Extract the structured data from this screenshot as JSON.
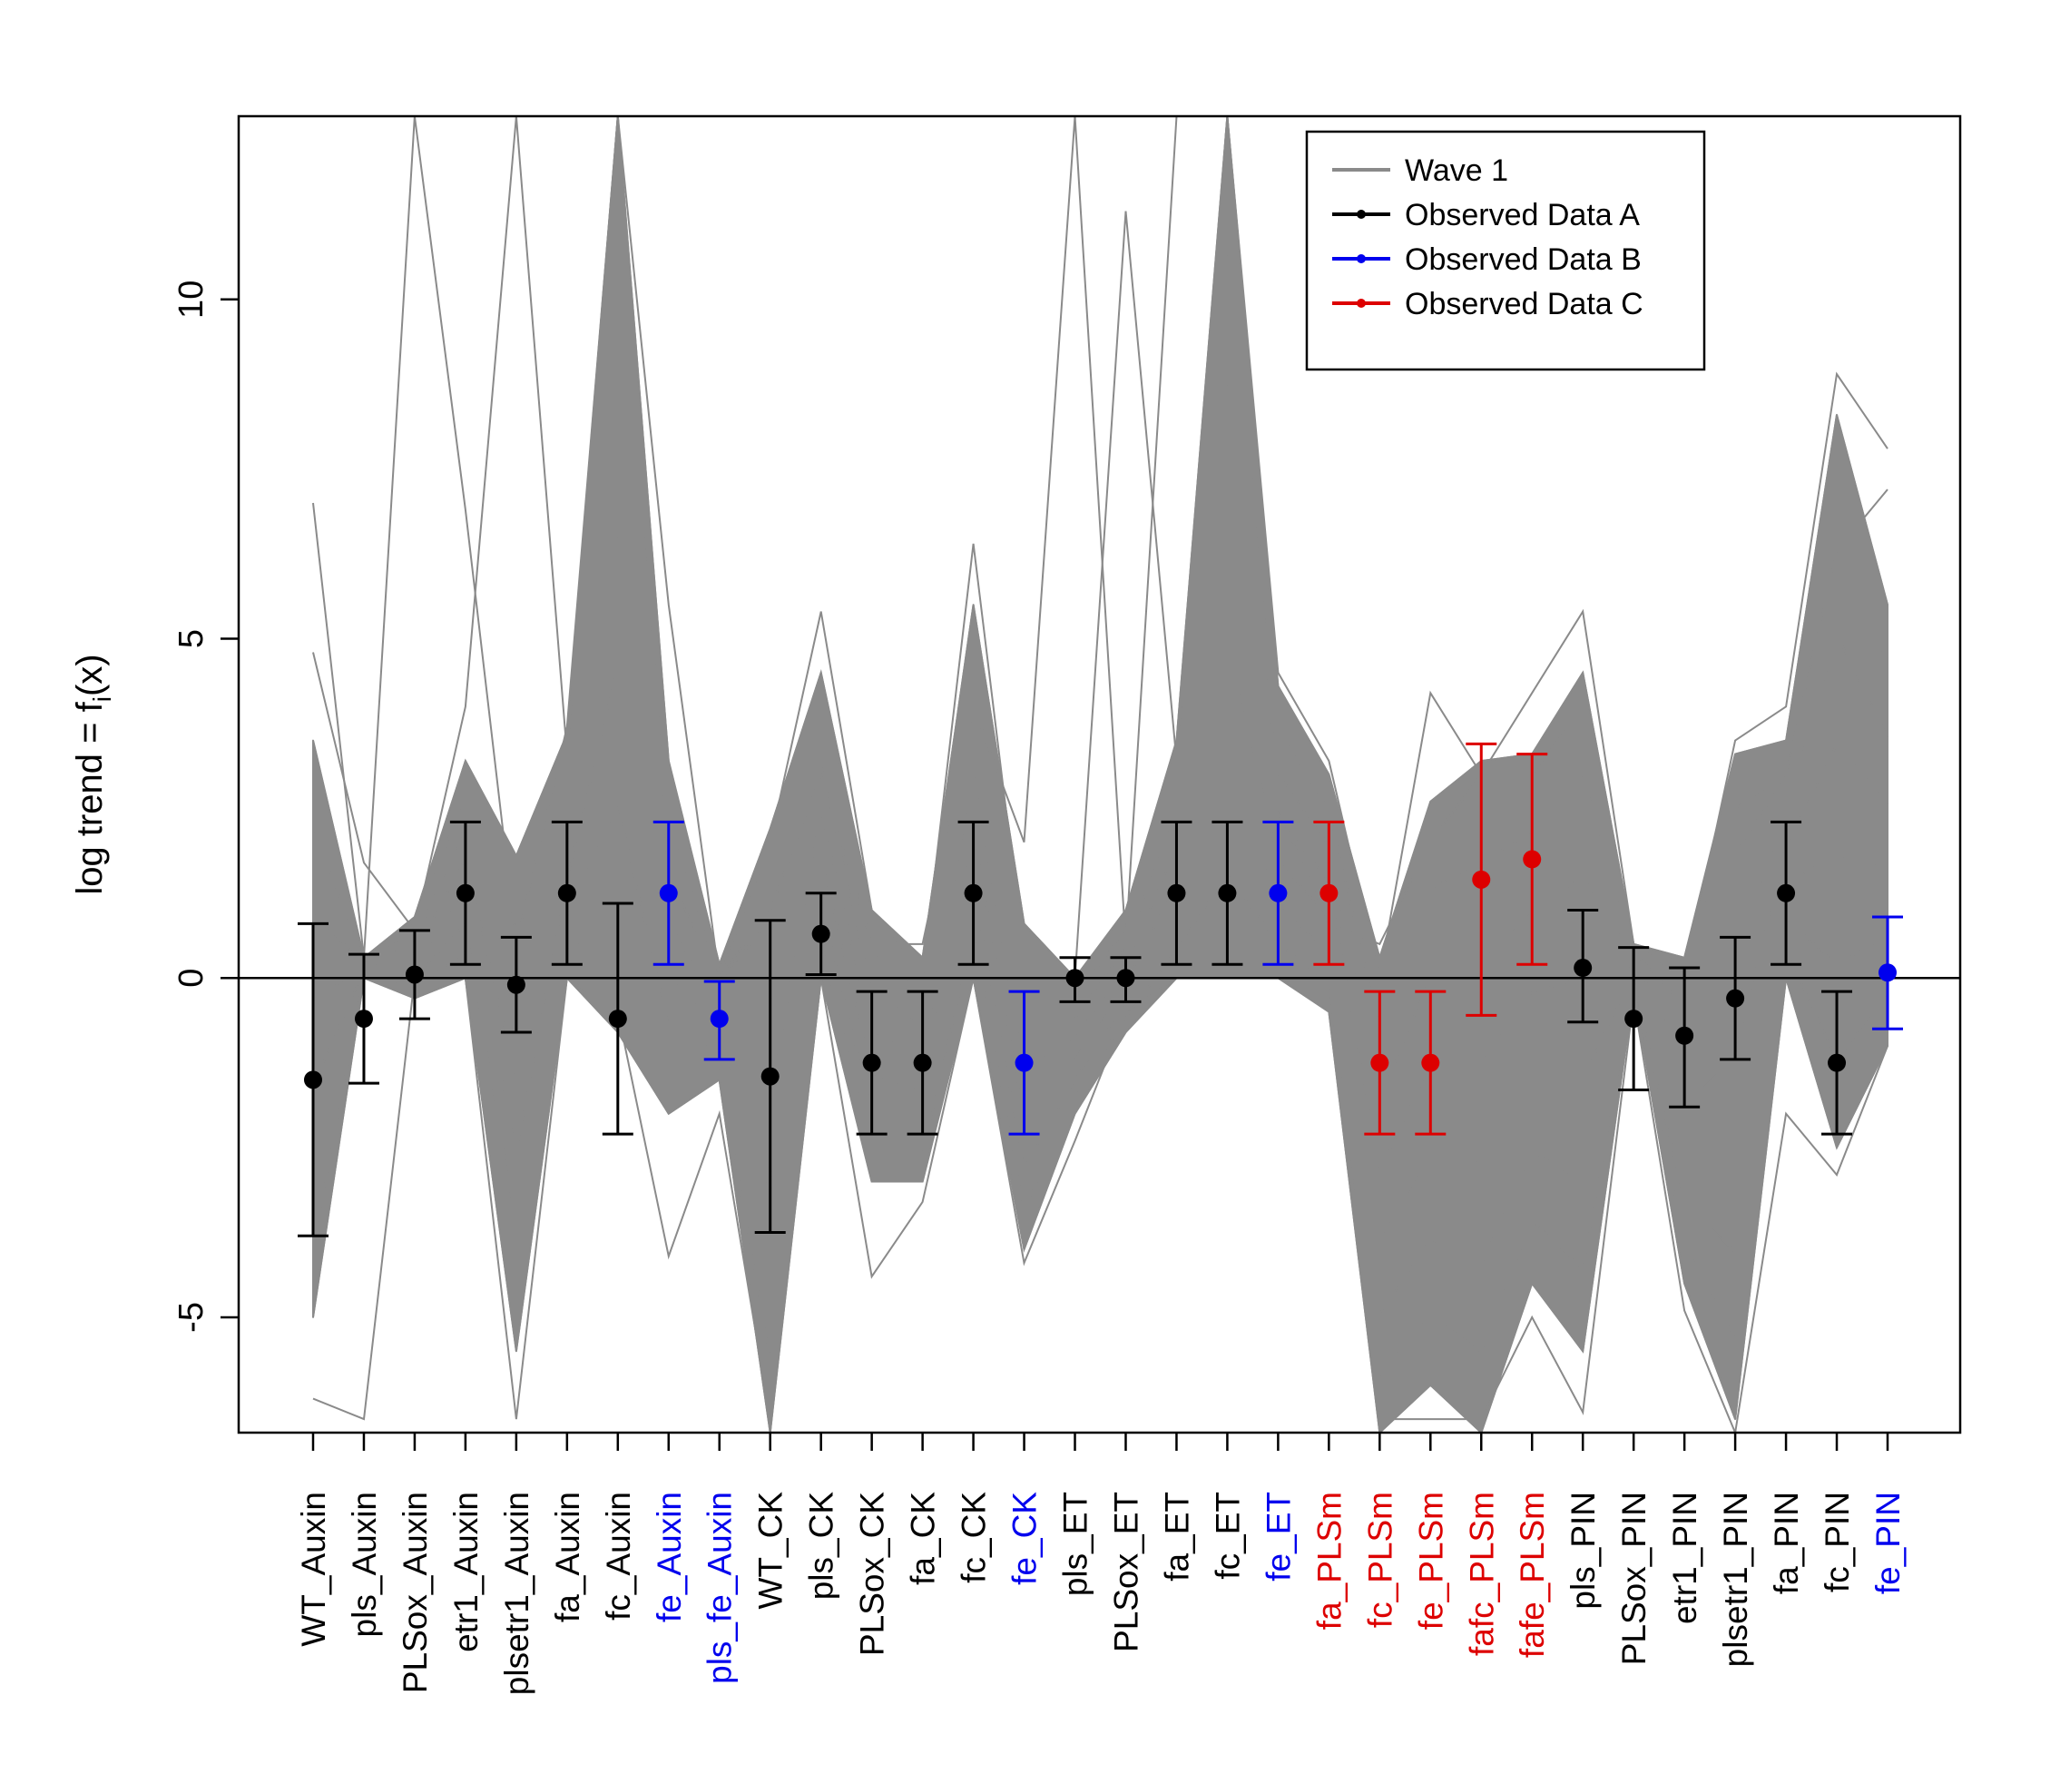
{
  "chart_data": {
    "type": "line",
    "title": "",
    "xlabel": "",
    "ylabel_main": "log trend = f",
    "ylabel_sub": "i",
    "ylabel_tail": "(x)",
    "ylim": [
      -6.7,
      12.7
    ],
    "yticks": [
      -5,
      0,
      5,
      10
    ],
    "ytick_labels": [
      "-5",
      "0",
      "5",
      "10"
    ],
    "zero_line": 0,
    "categories": [
      "WT_Auxin",
      "pls_Auxin",
      "PLSox_Auxin",
      "etr1_Auxin",
      "plsetr1_Auxin",
      "fa_Auxin",
      "fc_Auxin",
      "fe_Auxin",
      "pls_fe_Auxin",
      "WT_CK",
      "pls_CK",
      "PLSox_CK",
      "fa_CK",
      "fc_CK",
      "fe_CK",
      "pls_ET",
      "PLSox_ET",
      "fa_ET",
      "fc_ET",
      "fe_ET",
      "fa_PLSm",
      "fc_PLSm",
      "fe_PLSm",
      "fafc_PLSm",
      "fafe_PLSm",
      "pls_PIN",
      "PLSox_PIN",
      "etr1_PIN",
      "plsetr1_PIN",
      "fa_PIN",
      "fc_PIN",
      "fe_PIN"
    ],
    "category_groups": [
      "A",
      "A",
      "A",
      "A",
      "A",
      "A",
      "A",
      "B",
      "B",
      "A",
      "A",
      "A",
      "A",
      "A",
      "B",
      "A",
      "A",
      "A",
      "A",
      "B",
      "C",
      "C",
      "C",
      "C",
      "C",
      "A",
      "A",
      "A",
      "A",
      "A",
      "A",
      "B"
    ],
    "observed": {
      "mean": [
        -1.5,
        -0.6,
        0.05,
        1.25,
        -0.1,
        1.25,
        -0.6,
        1.25,
        -0.6,
        -1.45,
        0.65,
        -1.25,
        -1.25,
        1.25,
        -1.25,
        0.0,
        0.0,
        1.25,
        1.25,
        1.25,
        1.25,
        -1.25,
        -1.25,
        1.45,
        1.75,
        0.15,
        -0.6,
        -0.85,
        -0.3,
        1.25,
        -1.25,
        0.08
      ],
      "lower": [
        -3.8,
        -1.55,
        -0.6,
        0.2,
        -0.8,
        0.2,
        -2.3,
        0.2,
        -1.2,
        -3.75,
        0.05,
        -2.3,
        -2.3,
        0.2,
        -2.3,
        -0.35,
        -0.35,
        0.2,
        0.2,
        0.2,
        0.2,
        -2.3,
        -2.3,
        -0.55,
        0.2,
        -0.65,
        -1.65,
        -1.9,
        -1.2,
        0.2,
        -2.3,
        -0.75
      ],
      "upper": [
        0.8,
        0.35,
        0.7,
        2.3,
        0.6,
        2.3,
        1.1,
        2.3,
        -0.05,
        0.85,
        1.25,
        -0.2,
        -0.2,
        2.3,
        -0.2,
        0.3,
        0.3,
        2.3,
        2.3,
        2.3,
        2.3,
        -0.2,
        -0.2,
        3.45,
        3.3,
        1.0,
        0.45,
        0.15,
        0.6,
        2.3,
        -0.2,
        0.9
      ]
    },
    "wave1_envelope": {
      "upper": [
        3.5,
        0.3,
        0.9,
        3.2,
        1.8,
        3.6,
        12.7,
        3.2,
        0.2,
        2.2,
        4.5,
        1.0,
        0.3,
        5.5,
        0.8,
        0.0,
        1.0,
        3.5,
        12.7,
        4.3,
        3.0,
        0.3,
        2.6,
        3.2,
        3.3,
        4.5,
        0.5,
        0.3,
        3.3,
        3.5,
        8.3,
        5.5
      ],
      "lower": [
        -5.0,
        0.0,
        -0.3,
        0.0,
        -5.5,
        0.0,
        -0.8,
        -2.0,
        -1.5,
        -6.7,
        0.0,
        -3.0,
        -3.0,
        0.0,
        -4.0,
        -2.0,
        -0.8,
        0.0,
        0.0,
        0.0,
        -0.5,
        -6.7,
        -6.0,
        -6.7,
        -4.5,
        -5.5,
        -0.2,
        -4.5,
        -6.5,
        0.0,
        -2.5,
        -1.0
      ]
    },
    "wave1_spikes": [
      {
        "values": [
          7.0,
          0.3,
          12.7,
          6.9,
          0.5,
          3.7,
          12.7,
          5.5,
          0.0,
          2.0,
          5.4,
          1.0,
          0.0,
          6.4,
          0.3,
          0.0,
          11.3,
          3.2,
          12.7,
          4.5,
          3.2,
          0.0,
          4.2,
          3.0,
          4.2,
          5.4,
          0.5,
          0.0,
          3.5,
          4.0,
          8.9,
          7.8
        ]
      },
      {
        "values": [
          4.8,
          1.7,
          0.7,
          4.0,
          12.7,
          3.3,
          12.7,
          1.5,
          0.0,
          1.0,
          3.0,
          0.5,
          0.5,
          4.0,
          2.0,
          12.7,
          0.5,
          12.7,
          12.7,
          2.5,
          0.8,
          0.5,
          2.0,
          3.0,
          3.0,
          4.0,
          0.5,
          0.2,
          2.5,
          3.0,
          6.3,
          7.2
        ]
      },
      {
        "values": [
          -6.2,
          -6.5,
          0.0,
          0.0,
          -6.5,
          0.0,
          -0.5,
          -4.1,
          -2.0,
          -6.5,
          0.0,
          -4.4,
          -3.3,
          0.0,
          -4.2,
          -2.4,
          -0.5,
          0.0,
          0.0,
          0.0,
          0.0,
          -6.5,
          -6.5,
          -6.5,
          -5.0,
          -6.4,
          -0.3,
          -4.9,
          -6.7,
          -2.0,
          -2.9,
          -1.0
        ]
      }
    ],
    "legend": {
      "position": "top-right",
      "entries": [
        {
          "label": "Wave 1",
          "color": "#8a8a8a",
          "marker": false
        },
        {
          "label": "Observed Data A",
          "color": "#000000",
          "marker": true
        },
        {
          "label": "Observed Data B",
          "color": "#0000ee",
          "marker": true
        },
        {
          "label": "Observed Data C",
          "color": "#dd0000",
          "marker": true
        }
      ]
    },
    "colors": {
      "A": "#000000",
      "B": "#0000ee",
      "C": "#dd0000",
      "wave": "#8a8a8a"
    }
  }
}
